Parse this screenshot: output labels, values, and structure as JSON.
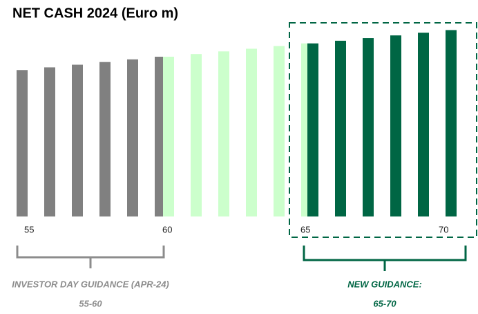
{
  "chart_data": {
    "type": "bar",
    "title": "NET CASH 2024 (Euro m)",
    "series": [
      {
        "color": "#808080",
        "x": [
          55,
          56,
          57,
          58,
          59,
          60
        ],
        "values": [
          55,
          56,
          57,
          58,
          59,
          60
        ]
      },
      {
        "color": "#ccffcc",
        "x": [
          60,
          61,
          62,
          63,
          64,
          65
        ],
        "values": [
          60,
          61,
          62,
          63,
          64,
          65
        ]
      },
      {
        "color": "#006644",
        "x": [
          65,
          66,
          67,
          68,
          69,
          70
        ],
        "values": [
          65,
          66,
          67,
          68,
          69,
          70
        ]
      }
    ],
    "xlim": [
      54,
      71
    ],
    "xticks": [
      55,
      60,
      65,
      70
    ],
    "ylim": [
      0,
      80
    ],
    "annotations": [
      {
        "text": "INVESTOR DAY GUIDANCE (APR-24)",
        "subtext": "55-60",
        "color": "#8c8c8c"
      },
      {
        "text": "NEW GUIDANCE:",
        "subtext": "65-70",
        "color": "#006644"
      }
    ]
  }
}
